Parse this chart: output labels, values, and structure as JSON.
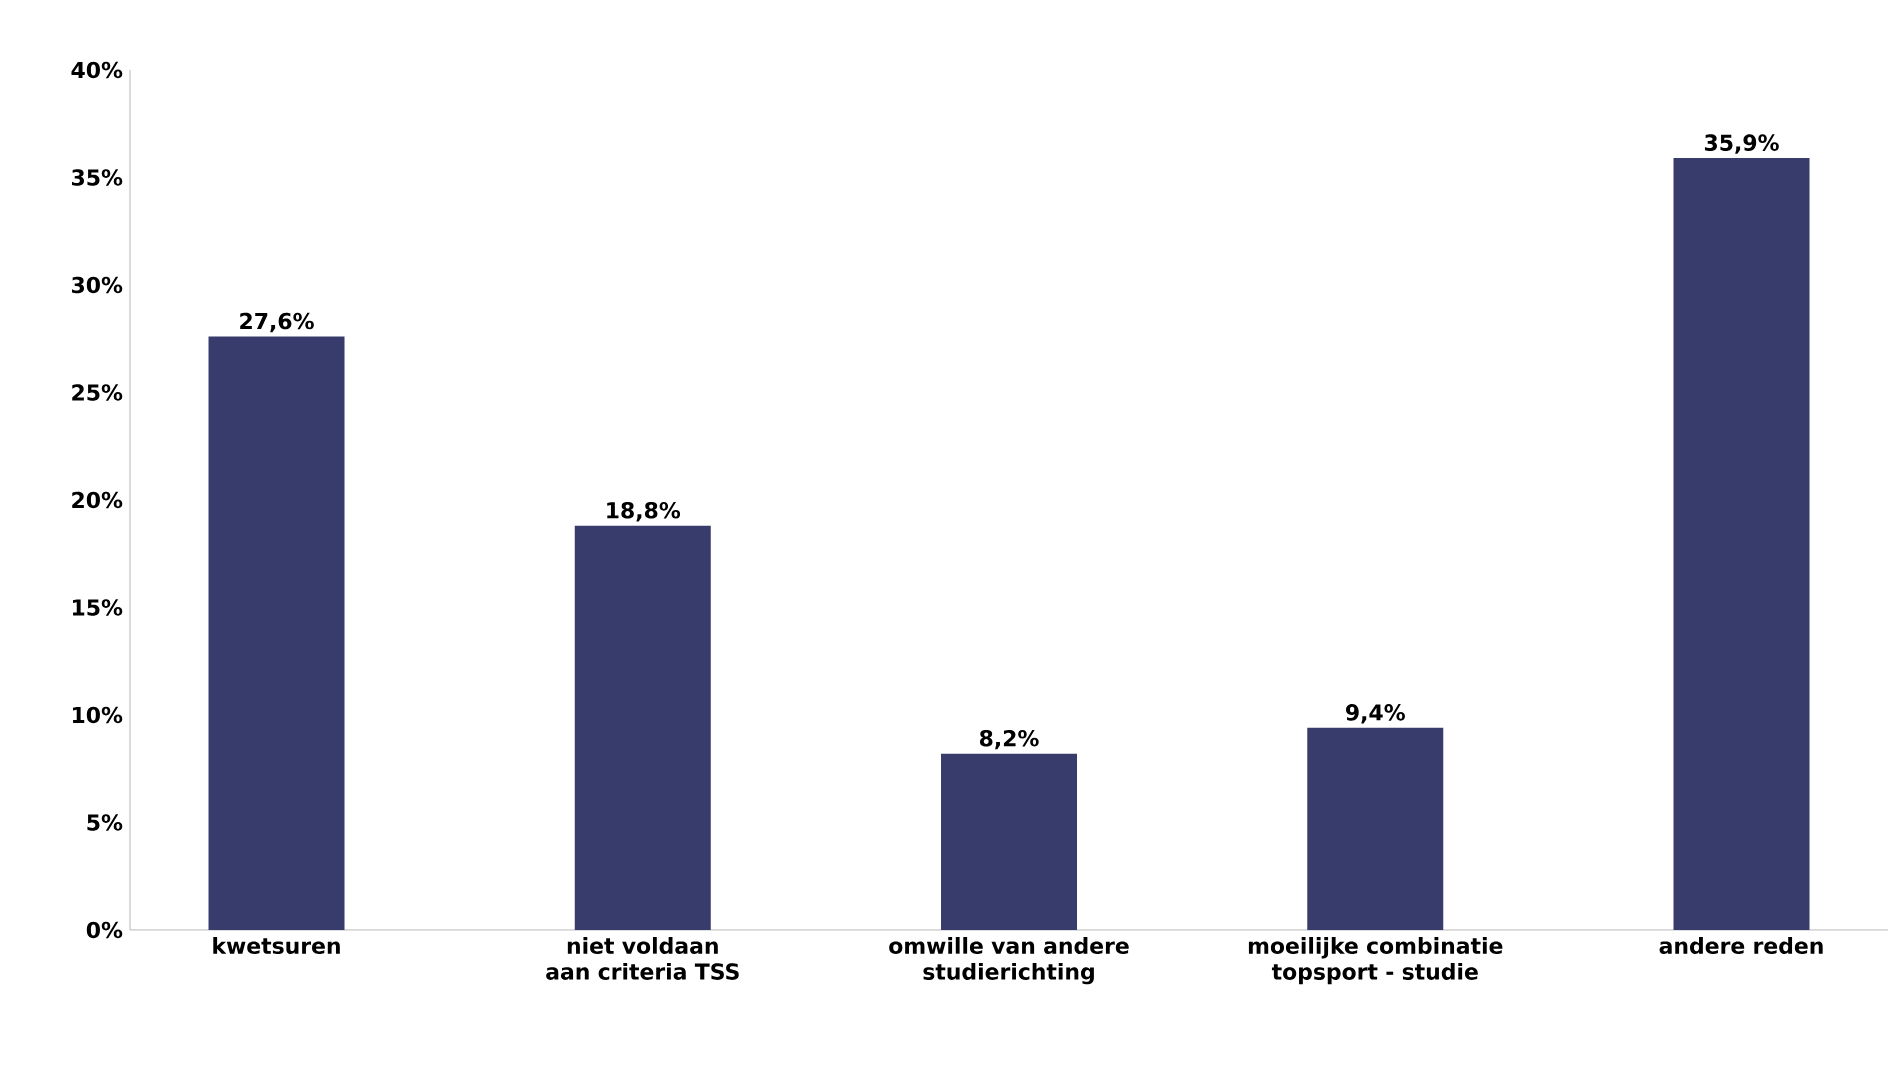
{
  "chart_data": {
    "type": "bar",
    "categories": [
      "kwetsuren",
      "niet voldaan aan criteria TSS",
      "omwille van andere studierichting",
      "moeilijke combinatie topsport - studie",
      "andere reden"
    ],
    "values": [
      27.6,
      18.8,
      8.2,
      9.4,
      35.9
    ],
    "value_labels": [
      "27,6%",
      "18,8%",
      "8,2%",
      "9,4%",
      "35,9%"
    ],
    "color": "#383c6c",
    "ylim": [
      0,
      40
    ],
    "yticks": [
      {
        "value": 0,
        "label": "0%"
      },
      {
        "value": 5,
        "label": "5%"
      },
      {
        "value": 10,
        "label": "10%"
      },
      {
        "value": 15,
        "label": "15%"
      },
      {
        "value": 20,
        "label": "20%"
      },
      {
        "value": 25,
        "label": "25%"
      },
      {
        "value": 30,
        "label": "30%"
      },
      {
        "value": 35,
        "label": "35%"
      },
      {
        "value": 40,
        "label": "40%"
      }
    ]
  }
}
